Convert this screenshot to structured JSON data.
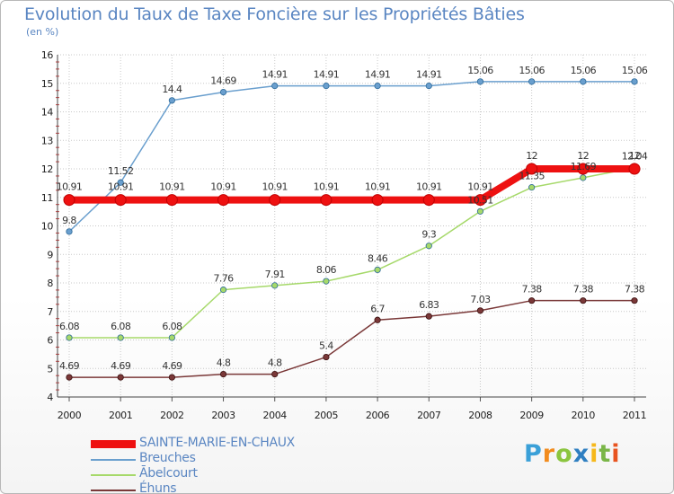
{
  "chart_data": {
    "type": "line",
    "title": "Evolution du Taux de Taxe Foncière sur les Propriétés Bâties",
    "ylabel": "(en %)",
    "xlabel": "",
    "categories": [
      "2000",
      "2001",
      "2002",
      "2003",
      "2004",
      "2005",
      "2006",
      "2007",
      "2008",
      "2009",
      "2010",
      "2011"
    ],
    "ylim": [
      4,
      16
    ],
    "yticks": [
      4,
      5,
      6,
      7,
      8,
      9,
      10,
      11,
      12,
      13,
      14,
      15,
      16
    ],
    "series": [
      {
        "name": "SAINTE-MARIE-EN-CHAUX",
        "color": "#ee1111",
        "values": [
          10.91,
          10.91,
          10.91,
          10.91,
          10.91,
          10.91,
          10.91,
          10.91,
          10.91,
          12,
          12,
          12
        ],
        "labels": [
          "10.91",
          "10.91",
          "10.91",
          "10.91",
          "10.91",
          "10.91",
          "10.91",
          "10.91",
          "10.91",
          "12",
          "12",
          "12"
        ]
      },
      {
        "name": "Breuches",
        "color": "#6a9fce",
        "values": [
          9.8,
          11.52,
          14.4,
          14.69,
          14.91,
          14.91,
          14.91,
          14.91,
          15.06,
          15.06,
          15.06,
          15.06
        ],
        "labels": [
          "9.8",
          "11.52",
          "14.4",
          "14.69",
          "14.91",
          "14.91",
          "14.91",
          "14.91",
          "15.06",
          "15.06",
          "15.06",
          "15.06"
        ]
      },
      {
        "name": "Abelcourt",
        "color": "#a6d96a",
        "values": [
          6.08,
          6.08,
          6.08,
          7.76,
          7.91,
          8.06,
          8.46,
          9.3,
          10.51,
          11.35,
          11.69,
          12.04
        ],
        "labels": [
          "6.08",
          "6.08",
          "6.08",
          "7.76",
          "7.91",
          "8.06",
          "8.46",
          "9.3",
          "10.51",
          "11.35",
          "11.69",
          "12.04"
        ]
      },
      {
        "name": "Éhuns",
        "color": "#7a3838",
        "values": [
          4.69,
          4.69,
          4.69,
          4.8,
          4.8,
          5.4,
          6.7,
          6.83,
          7.03,
          7.38,
          7.38,
          7.38
        ],
        "labels": [
          "4.69",
          "4.69",
          "4.69",
          "4.8",
          "4.8",
          "5.4",
          "6.7",
          "6.83",
          "7.03",
          "7.38",
          "7.38",
          "7.38"
        ]
      }
    ],
    "legend": {
      "position": "bottom-left",
      "entries": [
        "SAINTE-MARIE-EN-CHAUX",
        "Breuches",
        "Abelcourt",
        "Éhuns"
      ]
    }
  },
  "legend_display": [
    "SAINTE-MARIE-EN-CHAUX",
    "Breuches",
    "Ābelcourt",
    "Éhuns"
  ],
  "logo": {
    "letters": [
      "P",
      "r",
      "o",
      "x",
      "i",
      "t",
      "i"
    ],
    "colors": [
      "#3aa0d8",
      "#f28c1e",
      "#8bc53f",
      "#2f7fc1",
      "#f6b81a",
      "#7ab648",
      "#e8531f"
    ]
  }
}
